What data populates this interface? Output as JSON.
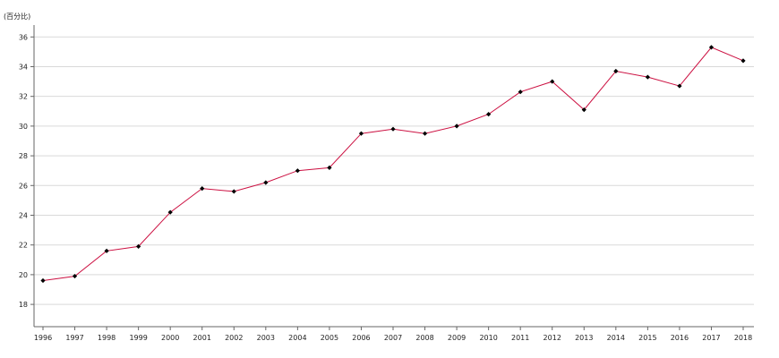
{
  "chart_data": {
    "type": "line",
    "title": "",
    "unit_label": "(百分比)",
    "xlabel": "",
    "ylabel": "",
    "x": [
      "1996",
      "1997",
      "1998",
      "1999",
      "2000",
      "2001",
      "2002",
      "2003",
      "2004",
      "2005",
      "2006",
      "2007",
      "2008",
      "2009",
      "2010",
      "2011",
      "2012",
      "2013",
      "2014",
      "2015",
      "2016",
      "2017",
      "2018"
    ],
    "series": [
      {
        "values": [
          19.6,
          19.9,
          21.6,
          21.9,
          24.2,
          25.8,
          25.6,
          26.2,
          27.0,
          27.2,
          29.5,
          29.8,
          29.5,
          30.0,
          30.8,
          32.3,
          33.0,
          31.1,
          33.7,
          33.3,
          32.7,
          35.3,
          34.4
        ],
        "line_color": "#cc1142",
        "marker_color": "#000000",
        "marker": "diamond"
      }
    ],
    "yticks": [
      18,
      20,
      22,
      24,
      26,
      28,
      30,
      32,
      34,
      36
    ],
    "ylim": [
      16.5,
      36.8
    ],
    "grid": true,
    "legend": "none"
  }
}
